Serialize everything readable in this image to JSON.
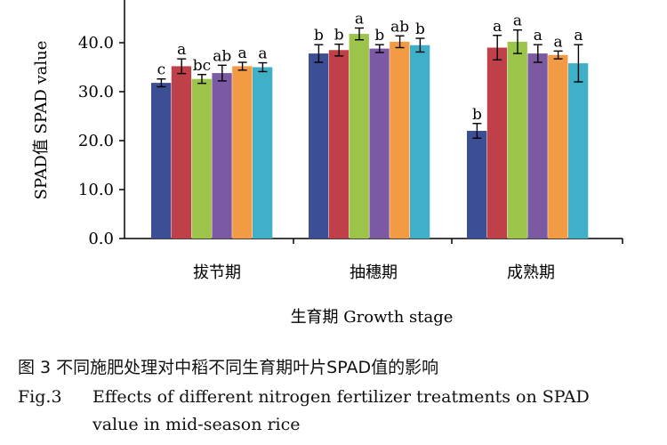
{
  "chart_data": {
    "type": "bar",
    "ylabel": "SPAD值 SPAD value",
    "xlabel": "生育期 Growth stage",
    "ylim": [
      0,
      45
    ],
    "yticks": [
      "0.0",
      "10.0",
      "20.0",
      "30.0",
      "40.0"
    ],
    "categories": [
      "拔节期",
      "抽穗期",
      "成熟期"
    ],
    "series_colors": [
      "#3d4f94",
      "#c0404a",
      "#9cc34a",
      "#7b5aa3",
      "#f39a45",
      "#3fb0c8"
    ],
    "values": [
      [
        31.8,
        35.2,
        32.6,
        33.8,
        35.2,
        35.0
      ],
      [
        37.8,
        38.5,
        41.8,
        38.8,
        40.2,
        39.5
      ],
      [
        22.0,
        39.0,
        40.2,
        37.8,
        37.5,
        35.8
      ]
    ],
    "errors": [
      [
        0.8,
        1.5,
        0.9,
        1.6,
        0.8,
        0.9
      ],
      [
        1.8,
        1.2,
        1.2,
        0.8,
        1.2,
        1.4
      ],
      [
        1.5,
        2.5,
        2.4,
        1.8,
        0.8,
        3.8
      ]
    ],
    "letters": [
      [
        "c",
        "a",
        "bc",
        "ab",
        "a",
        "a"
      ],
      [
        "b",
        "b",
        "a",
        "b",
        "ab",
        "b"
      ],
      [
        "b",
        "a",
        "a",
        "a",
        "a",
        "a"
      ]
    ]
  },
  "caption": {
    "zh": "图  3    不同施肥处理对中稻不同生育期叶片SPAD值的影响",
    "en_label": "Fig.3",
    "en_line1": "Effects of different nitrogen fertilizer treatments on SPAD",
    "en_line2": "value in mid-season rice"
  }
}
